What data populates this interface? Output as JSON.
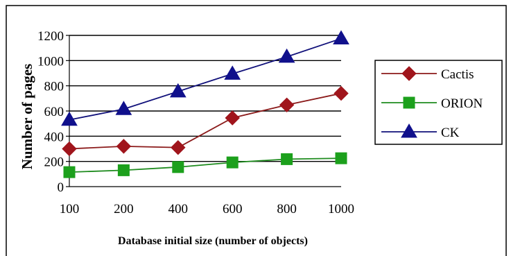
{
  "chart_data": {
    "type": "line",
    "categories": [
      "100",
      "200",
      "400",
      "600",
      "800",
      "1000"
    ],
    "xlabel": "Database initial size (number of objects)",
    "ylabel": "Number of pages",
    "ylim": [
      0,
      1200
    ],
    "yticks": [
      0,
      200,
      400,
      600,
      800,
      1000,
      1200
    ],
    "grid": "horizontal",
    "legend_position": "right",
    "series": [
      {
        "name": "Cactis",
        "values": [
          300,
          320,
          310,
          545,
          648,
          740
        ],
        "color": "#8B1A1A",
        "marker_color": "#A0151C",
        "marker": "diamond"
      },
      {
        "name": "ORION",
        "values": [
          115,
          130,
          155,
          192,
          218,
          225
        ],
        "color": "#1E8B1E",
        "marker_color": "#1CA01C",
        "marker": "square"
      },
      {
        "name": "CK",
        "values": [
          530,
          615,
          755,
          895,
          1030,
          1175
        ],
        "color": "#10107A",
        "marker_color": "#10108C",
        "marker": "triangle"
      }
    ]
  }
}
